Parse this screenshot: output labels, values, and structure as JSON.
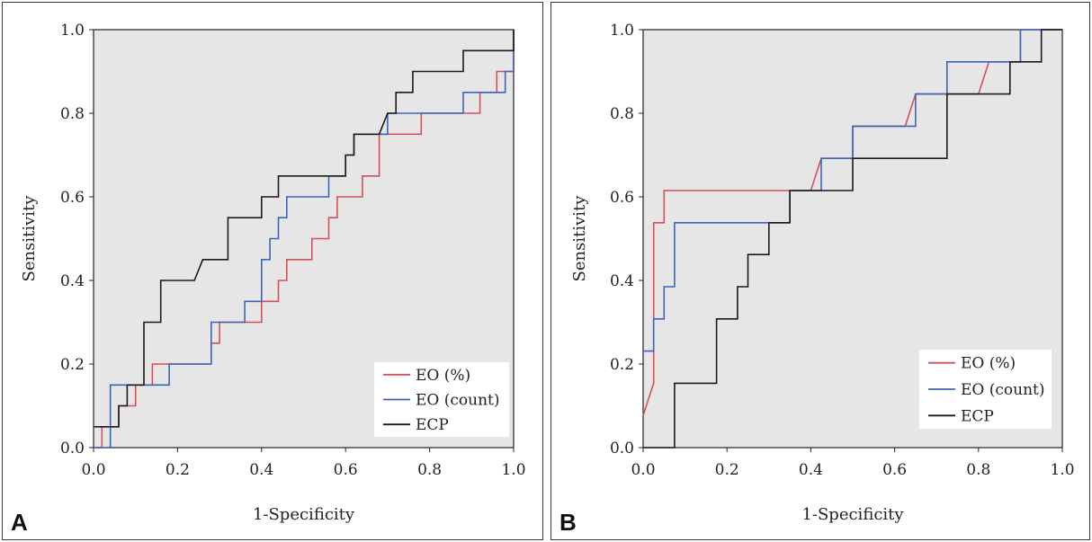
{
  "chart_data": [
    {
      "type": "line",
      "panel_label": "A",
      "xlabel": "1-Specificity",
      "ylabel": "Sensitivity",
      "xlim": [
        0,
        1
      ],
      "ylim": [
        0,
        1
      ],
      "xticks": [
        "0.0",
        "0.2",
        "0.4",
        "0.6",
        "0.8",
        "1.0"
      ],
      "yticks": [
        "0.0",
        "0.2",
        "0.4",
        "0.6",
        "0.8",
        "1.0"
      ],
      "legend_position": "bottom-right",
      "series": [
        {
          "name": "EO (%)",
          "color": "#d0515b",
          "points": [
            [
              0,
              0
            ],
            [
              0.02,
              0
            ],
            [
              0.02,
              0.05
            ],
            [
              0.06,
              0.05
            ],
            [
              0.06,
              0.1
            ],
            [
              0.1,
              0.1
            ],
            [
              0.1,
              0.15
            ],
            [
              0.14,
              0.15
            ],
            [
              0.14,
              0.2
            ],
            [
              0.28,
              0.2
            ],
            [
              0.28,
              0.25
            ],
            [
              0.3,
              0.25
            ],
            [
              0.3,
              0.3
            ],
            [
              0.4,
              0.3
            ],
            [
              0.4,
              0.35
            ],
            [
              0.44,
              0.35
            ],
            [
              0.44,
              0.4
            ],
            [
              0.46,
              0.4
            ],
            [
              0.46,
              0.45
            ],
            [
              0.52,
              0.45
            ],
            [
              0.52,
              0.5
            ],
            [
              0.56,
              0.5
            ],
            [
              0.56,
              0.55
            ],
            [
              0.58,
              0.55
            ],
            [
              0.58,
              0.6
            ],
            [
              0.64,
              0.6
            ],
            [
              0.64,
              0.65
            ],
            [
              0.68,
              0.65
            ],
            [
              0.68,
              0.75
            ],
            [
              0.72,
              0.75
            ],
            [
              0.78,
              0.75
            ],
            [
              0.78,
              0.8
            ],
            [
              0.92,
              0.8
            ],
            [
              0.92,
              0.85
            ],
            [
              0.96,
              0.85
            ],
            [
              0.96,
              0.9
            ],
            [
              1,
              0.9
            ],
            [
              1,
              1
            ]
          ]
        },
        {
          "name": "EO (count)",
          "color": "#3e64b8",
          "points": [
            [
              0,
              0
            ],
            [
              0.04,
              0
            ],
            [
              0.04,
              0.15
            ],
            [
              0.14,
              0.15
            ],
            [
              0.18,
              0.15
            ],
            [
              0.18,
              0.2
            ],
            [
              0.28,
              0.2
            ],
            [
              0.28,
              0.3
            ],
            [
              0.36,
              0.3
            ],
            [
              0.36,
              0.35
            ],
            [
              0.4,
              0.35
            ],
            [
              0.4,
              0.45
            ],
            [
              0.42,
              0.45
            ],
            [
              0.42,
              0.5
            ],
            [
              0.44,
              0.5
            ],
            [
              0.44,
              0.55
            ],
            [
              0.46,
              0.55
            ],
            [
              0.46,
              0.6
            ],
            [
              0.56,
              0.6
            ],
            [
              0.56,
              0.65
            ],
            [
              0.6,
              0.65
            ],
            [
              0.6,
              0.7
            ],
            [
              0.62,
              0.7
            ],
            [
              0.62,
              0.75
            ],
            [
              0.7,
              0.75
            ],
            [
              0.7,
              0.8
            ],
            [
              0.88,
              0.8
            ],
            [
              0.88,
              0.85
            ],
            [
              0.98,
              0.85
            ],
            [
              0.98,
              0.9
            ],
            [
              1,
              0.9
            ],
            [
              1,
              1
            ]
          ]
        },
        {
          "name": "ECP",
          "color": "#1a1a1a",
          "points": [
            [
              0,
              0.05
            ],
            [
              0.06,
              0.05
            ],
            [
              0.06,
              0.1
            ],
            [
              0.08,
              0.1
            ],
            [
              0.08,
              0.15
            ],
            [
              0.12,
              0.15
            ],
            [
              0.12,
              0.3
            ],
            [
              0.16,
              0.3
            ],
            [
              0.16,
              0.4
            ],
            [
              0.24,
              0.4
            ],
            [
              0.26,
              0.45
            ],
            [
              0.32,
              0.45
            ],
            [
              0.32,
              0.55
            ],
            [
              0.4,
              0.55
            ],
            [
              0.4,
              0.6
            ],
            [
              0.44,
              0.6
            ],
            [
              0.44,
              0.65
            ],
            [
              0.6,
              0.65
            ],
            [
              0.6,
              0.7
            ],
            [
              0.62,
              0.7
            ],
            [
              0.62,
              0.75
            ],
            [
              0.68,
              0.75
            ],
            [
              0.7,
              0.8
            ],
            [
              0.72,
              0.8
            ],
            [
              0.72,
              0.85
            ],
            [
              0.76,
              0.85
            ],
            [
              0.76,
              0.9
            ],
            [
              0.88,
              0.9
            ],
            [
              0.88,
              0.95
            ],
            [
              1,
              0.95
            ],
            [
              1,
              1
            ]
          ]
        }
      ]
    },
    {
      "type": "line",
      "panel_label": "B",
      "xlabel": "1-Specificity",
      "ylabel": "Sensitivity",
      "xlim": [
        0,
        1
      ],
      "ylim": [
        0,
        1
      ],
      "xticks": [
        "0.0",
        "0.2",
        "0.4",
        "0.6",
        "0.8",
        "1.0"
      ],
      "yticks": [
        "0.0",
        "0.2",
        "0.4",
        "0.6",
        "0.8",
        "1.0"
      ],
      "legend_position": "bottom-right",
      "series": [
        {
          "name": "EO (%)",
          "color": "#d0515b",
          "points": [
            [
              0,
              0.077
            ],
            [
              0.025,
              0.154
            ],
            [
              0.025,
              0.538
            ],
            [
              0.05,
              0.538
            ],
            [
              0.05,
              0.615
            ],
            [
              0.4,
              0.615
            ],
            [
              0.425,
              0.692
            ],
            [
              0.5,
              0.692
            ],
            [
              0.5,
              0.769
            ],
            [
              0.55,
              0.769
            ],
            [
              0.625,
              0.769
            ],
            [
              0.65,
              0.846
            ],
            [
              0.8,
              0.846
            ],
            [
              0.825,
              0.923
            ],
            [
              0.9,
              0.923
            ],
            [
              0.9,
              1
            ],
            [
              1,
              1
            ]
          ]
        },
        {
          "name": "EO (count)",
          "color": "#3e64b8",
          "points": [
            [
              0,
              0.231
            ],
            [
              0.025,
              0.231
            ],
            [
              0.025,
              0.308
            ],
            [
              0.05,
              0.308
            ],
            [
              0.05,
              0.385
            ],
            [
              0.075,
              0.385
            ],
            [
              0.075,
              0.538
            ],
            [
              0.35,
              0.538
            ],
            [
              0.35,
              0.615
            ],
            [
              0.425,
              0.615
            ],
            [
              0.425,
              0.692
            ],
            [
              0.5,
              0.692
            ],
            [
              0.5,
              0.769
            ],
            [
              0.65,
              0.769
            ],
            [
              0.65,
              0.846
            ],
            [
              0.725,
              0.846
            ],
            [
              0.725,
              0.923
            ],
            [
              0.9,
              0.923
            ],
            [
              0.9,
              1
            ],
            [
              1,
              1
            ]
          ]
        },
        {
          "name": "ECP",
          "color": "#1a1a1a",
          "points": [
            [
              0,
              0
            ],
            [
              0.075,
              0
            ],
            [
              0.075,
              0.154
            ],
            [
              0.175,
              0.154
            ],
            [
              0.175,
              0.308
            ],
            [
              0.225,
              0.308
            ],
            [
              0.225,
              0.385
            ],
            [
              0.25,
              0.385
            ],
            [
              0.25,
              0.462
            ],
            [
              0.3,
              0.462
            ],
            [
              0.3,
              0.538
            ],
            [
              0.35,
              0.538
            ],
            [
              0.35,
              0.615
            ],
            [
              0.5,
              0.615
            ],
            [
              0.5,
              0.692
            ],
            [
              0.725,
              0.692
            ],
            [
              0.725,
              0.846
            ],
            [
              0.875,
              0.846
            ],
            [
              0.875,
              0.923
            ],
            [
              0.95,
              0.923
            ],
            [
              0.95,
              1
            ],
            [
              1,
              1
            ]
          ]
        }
      ]
    }
  ]
}
